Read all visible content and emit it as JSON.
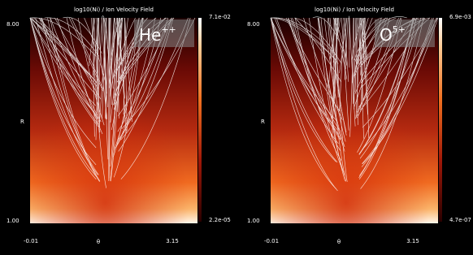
{
  "panels": [
    {
      "title": "log10(Ni) / Ion Velocity Field",
      "species": "He",
      "charge": "++",
      "y_label": "R",
      "y_top": "8.00",
      "y_bottom": "1.00",
      "x_label": "θ",
      "x_left": "-0.01",
      "x_right": "3.15",
      "colorbar_max": "7.1e-02",
      "colorbar_min": "2.2e-05"
    },
    {
      "title": "log10(Ni) / Ion Velocity Field",
      "species": "O",
      "charge": "5+",
      "y_label": "R",
      "y_top": "8.00",
      "y_bottom": "1.00",
      "x_label": "θ",
      "x_left": "-0.01",
      "x_right": "3.15",
      "colorbar_max": "6.9e-03",
      "colorbar_min": "4.7e-07"
    }
  ]
}
